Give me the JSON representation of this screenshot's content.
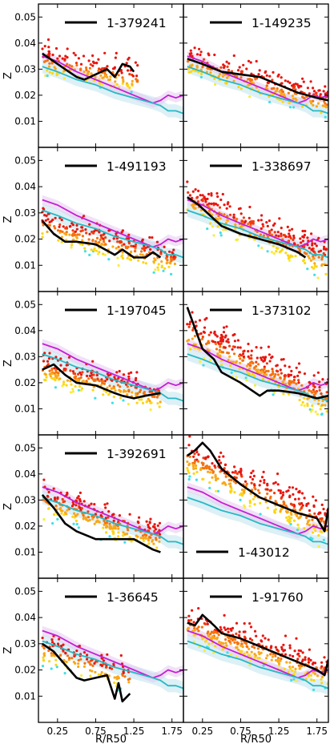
{
  "chart_data": {
    "type": "scatter",
    "layout": {
      "rows": 5,
      "cols": 2,
      "sharex": true,
      "sharey": true
    },
    "xlabel": "R/R50",
    "ylabel": "Z",
    "xlim": [
      0.0,
      1.9
    ],
    "ylim": [
      0.0,
      0.055
    ],
    "xticks": [
      "0.25",
      "0.75",
      "1.25",
      "1.75"
    ],
    "yticks": [
      "0.01",
      "0.02",
      "0.03",
      "0.04",
      "0.05"
    ],
    "colors": {
      "median": "#000000",
      "magenta_reference": "#c41fd3",
      "cyan_reference": "#27b8c4",
      "cyan_band": "#bfe3ef",
      "magenta_band": "#e6c9f0",
      "points": [
        "#e8150e",
        "#f03c0c",
        "#f5720f",
        "#f9a81a",
        "#fcd616",
        "#f9ec3b",
        "#3fe0e8"
      ]
    },
    "reference_lines": {
      "magenta": {
        "x": [
          0.05,
          0.25,
          0.5,
          0.75,
          1.0,
          1.25,
          1.5,
          1.6,
          1.7,
          1.8,
          1.9
        ],
        "y": [
          0.035,
          0.033,
          0.029,
          0.026,
          0.023,
          0.02,
          0.017,
          0.018,
          0.02,
          0.019,
          0.02
        ]
      },
      "cyan": {
        "x": [
          0.05,
          0.25,
          0.5,
          0.75,
          1.0,
          1.25,
          1.5,
          1.6,
          1.7,
          1.8,
          1.9
        ],
        "y": [
          0.031,
          0.029,
          0.026,
          0.024,
          0.021,
          0.019,
          0.017,
          0.016,
          0.014,
          0.014,
          0.013
        ]
      }
    },
    "panels": [
      {
        "legend": "1-379241",
        "legend_pos": "top",
        "median": {
          "x": [
            0.05,
            0.2,
            0.35,
            0.5,
            0.6,
            0.75,
            0.9,
            1.0,
            1.1,
            1.2,
            1.25
          ],
          "y": [
            0.036,
            0.033,
            0.03,
            0.027,
            0.026,
            0.028,
            0.03,
            0.027,
            0.032,
            0.031,
            0.029
          ]
        },
        "scatter": {
          "x_range": [
            0.05,
            1.3
          ],
          "n": 170,
          "slope": -0.006,
          "z0": 0.034,
          "spread": 0.007
        }
      },
      {
        "legend": "1-149235",
        "legend_pos": "top",
        "median": {
          "x": [
            0.05,
            0.25,
            0.5,
            0.75,
            1.0,
            1.25,
            1.5,
            1.75,
            1.9
          ],
          "y": [
            0.034,
            0.032,
            0.029,
            0.028,
            0.027,
            0.024,
            0.021,
            0.019,
            0.018
          ]
        },
        "scatter": {
          "x_range": [
            0.05,
            1.9
          ],
          "n": 260,
          "slope": -0.009,
          "z0": 0.034,
          "spread": 0.007
        }
      },
      {
        "legend": "1-491193",
        "legend_pos": "top",
        "median": {
          "x": [
            0.05,
            0.2,
            0.35,
            0.5,
            0.75,
            1.0,
            1.1,
            1.25,
            1.4,
            1.5,
            1.6
          ],
          "y": [
            0.027,
            0.022,
            0.019,
            0.019,
            0.018,
            0.014,
            0.016,
            0.013,
            0.013,
            0.015,
            0.013
          ]
        },
        "scatter": {
          "x_range": [
            0.05,
            1.8
          ],
          "n": 280,
          "slope": -0.008,
          "z0": 0.026,
          "spread": 0.007
        }
      },
      {
        "legend": "1-338697",
        "legend_pos": "top",
        "median": {
          "x": [
            0.05,
            0.2,
            0.35,
            0.5,
            0.75,
            1.0,
            1.25,
            1.5,
            1.6
          ],
          "y": [
            0.036,
            0.033,
            0.029,
            0.025,
            0.022,
            0.02,
            0.018,
            0.015,
            0.013
          ]
        },
        "scatter": {
          "x_range": [
            0.05,
            1.9
          ],
          "n": 320,
          "slope": -0.013,
          "z0": 0.036,
          "spread": 0.008
        }
      },
      {
        "legend": "1-197045",
        "legend_pos": "top",
        "median": {
          "x": [
            0.05,
            0.2,
            0.35,
            0.5,
            0.75,
            1.0,
            1.1,
            1.25,
            1.4,
            1.6
          ],
          "y": [
            0.025,
            0.027,
            0.023,
            0.02,
            0.019,
            0.016,
            0.015,
            0.014,
            0.015,
            0.016
          ]
        },
        "scatter": {
          "x_range": [
            0.05,
            1.6
          ],
          "n": 260,
          "slope": -0.007,
          "z0": 0.026,
          "spread": 0.007
        }
      },
      {
        "legend": "1-373102",
        "legend_pos": "top",
        "median": {
          "x": [
            0.05,
            0.15,
            0.25,
            0.4,
            0.5,
            0.75,
            1.0,
            1.1,
            1.25,
            1.5,
            1.75,
            1.9
          ],
          "y": [
            0.049,
            0.041,
            0.033,
            0.029,
            0.024,
            0.02,
            0.015,
            0.017,
            0.017,
            0.016,
            0.014,
            0.015
          ]
        },
        "scatter": {
          "x_range": [
            0.05,
            1.9
          ],
          "n": 360,
          "slope": -0.014,
          "z0": 0.04,
          "spread": 0.009
        }
      },
      {
        "legend": "1-392691",
        "legend_pos": "top",
        "median": {
          "x": [
            0.05,
            0.2,
            0.35,
            0.5,
            0.75,
            1.0,
            1.25,
            1.5,
            1.6
          ],
          "y": [
            0.032,
            0.027,
            0.021,
            0.018,
            0.015,
            0.015,
            0.015,
            0.011,
            0.01
          ]
        },
        "scatter": {
          "x_range": [
            0.05,
            1.6
          ],
          "n": 260,
          "slope": -0.01,
          "z0": 0.031,
          "spread": 0.007
        }
      },
      {
        "legend": "1-43012",
        "legend_pos": "bottom",
        "median": {
          "x": [
            0.05,
            0.15,
            0.25,
            0.35,
            0.5,
            0.75,
            1.0,
            1.25,
            1.5,
            1.75,
            1.85,
            1.9
          ],
          "y": [
            0.047,
            0.049,
            0.052,
            0.049,
            0.042,
            0.036,
            0.031,
            0.028,
            0.025,
            0.023,
            0.018,
            0.027
          ]
        },
        "scatter": {
          "x_range": [
            0.05,
            1.9
          ],
          "n": 340,
          "slope": -0.014,
          "z0": 0.047,
          "spread": 0.009
        }
      },
      {
        "legend": "1-36645",
        "legend_pos": "top",
        "median": {
          "x": [
            0.05,
            0.2,
            0.35,
            0.5,
            0.6,
            0.75,
            0.9,
            1.0,
            1.05,
            1.1,
            1.2
          ],
          "y": [
            0.03,
            0.027,
            0.022,
            0.017,
            0.016,
            0.017,
            0.018,
            0.009,
            0.015,
            0.008,
            0.011
          ]
        },
        "scatter": {
          "x_range": [
            0.05,
            1.2
          ],
          "n": 150,
          "slope": -0.01,
          "z0": 0.029,
          "spread": 0.007
        }
      },
      {
        "legend": "1-91760",
        "legend_pos": "top",
        "median": {
          "x": [
            0.05,
            0.15,
            0.25,
            0.4,
            0.5,
            0.75,
            1.0,
            1.25,
            1.5,
            1.75,
            1.85,
            1.9
          ],
          "y": [
            0.038,
            0.037,
            0.041,
            0.037,
            0.034,
            0.032,
            0.029,
            0.026,
            0.023,
            0.02,
            0.018,
            0.024
          ]
        },
        "scatter": {
          "x_range": [
            0.05,
            1.9
          ],
          "n": 340,
          "slope": -0.01,
          "z0": 0.038,
          "spread": 0.008
        }
      }
    ]
  }
}
